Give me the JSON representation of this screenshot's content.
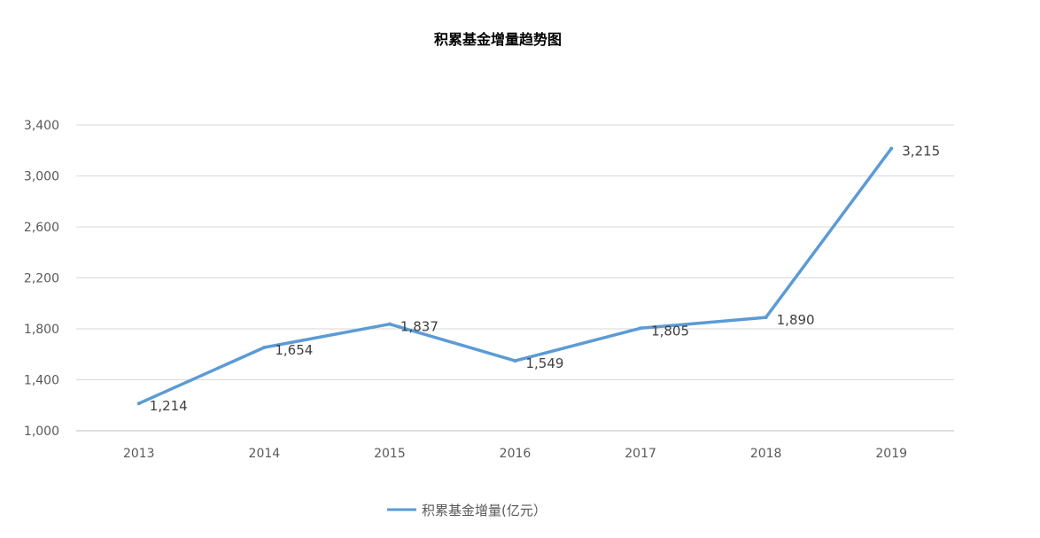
{
  "chart_data": {
    "type": "line",
    "title": "积累基金增量趋势图",
    "categories": [
      "2013",
      "2014",
      "2015",
      "2016",
      "2017",
      "2018",
      "2019"
    ],
    "series": [
      {
        "name": "积累基金增量(亿元）",
        "values": [
          1214,
          1654,
          1837,
          1549,
          1805,
          1890,
          3215
        ],
        "labels": [
          "1,214",
          "1,654",
          "1,837",
          "1,549",
          "1,805",
          "1,890",
          "3,215"
        ],
        "color": "#5b9bd5"
      }
    ],
    "ylim": [
      1000,
      3400
    ],
    "yticks": [
      "1,000",
      "1,400",
      "1,800",
      "2,200",
      "2,600",
      "3,000",
      "3,400"
    ],
    "grid": true,
    "legend": "bottom"
  }
}
